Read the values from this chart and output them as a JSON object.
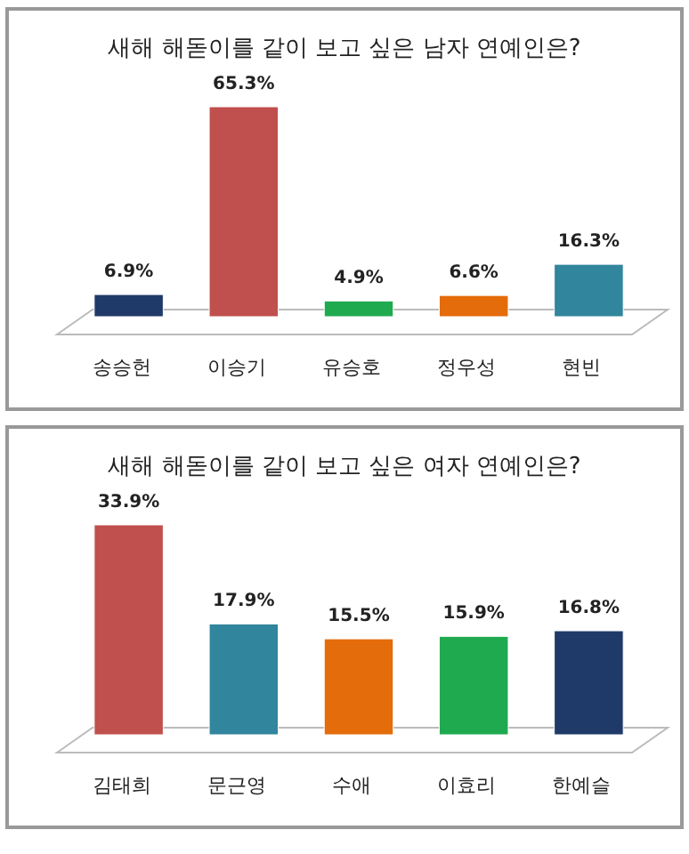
{
  "chart_data": [
    {
      "type": "bar",
      "title": "새해 해돋이를 같이 보고 싶은 남자 연예인은?",
      "categories": [
        "송승헌",
        "이승기",
        "유승호",
        "정우성",
        "현빈"
      ],
      "values": [
        6.9,
        65.3,
        4.9,
        6.6,
        16.3
      ],
      "value_labels": [
        "6.9%",
        "65.3%",
        "4.9%",
        "6.6%",
        "16.3%"
      ],
      "colors": [
        "#1f3a68",
        "#c0504d",
        "#1faa50",
        "#e46c0a",
        "#31859c"
      ]
    },
    {
      "type": "bar",
      "title": "새해 해돋이를 같이 보고 싶은 여자 연예인은?",
      "categories": [
        "김태희",
        "문근영",
        "수애",
        "이효리",
        "한예슬"
      ],
      "values": [
        33.9,
        17.9,
        15.5,
        15.9,
        16.8
      ],
      "value_labels": [
        "33.9%",
        "17.9%",
        "15.5%",
        "15.9%",
        "16.8%"
      ],
      "colors": [
        "#c0504d",
        "#31859c",
        "#e46c0a",
        "#1faa50",
        "#1f3a68"
      ]
    }
  ]
}
